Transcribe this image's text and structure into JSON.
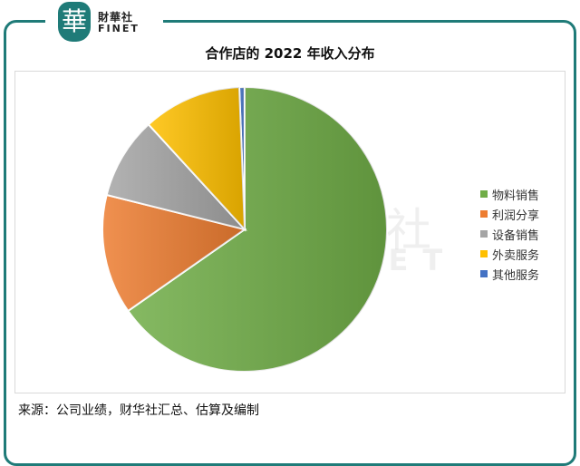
{
  "brand": {
    "logo_glyph": "華",
    "name_cn": "財華社",
    "name_en": "FINET",
    "color": "#1f7b78"
  },
  "chart_data": {
    "type": "pie",
    "title": "合作店的 2022 年收入分布",
    "start_angle_deg": -2.2,
    "direction": "clockwise-from-top, blue slice first",
    "categories": [
      "其他服务",
      "物料销售",
      "利润分享",
      "设备销售",
      "外卖服务"
    ],
    "values": [
      0.6,
      65.3,
      13.6,
      9.3,
      11.2
    ],
    "colors": [
      "#4472c4",
      "#70ad47",
      "#ed7d31",
      "#a5a5a5",
      "#ffc000"
    ],
    "legend": {
      "position": "right",
      "entries": [
        "物料销售",
        "利润分享",
        "设备销售",
        "外卖服务",
        "其他服务"
      ],
      "colors": [
        "#70ad47",
        "#ed7d31",
        "#a5a5a5",
        "#ffc000",
        "#4472c4"
      ]
    }
  },
  "watermark": {
    "cn": "財華社",
    "en": "FINET"
  },
  "source": "来源：公司业绩，财华社汇总、估算及编制"
}
